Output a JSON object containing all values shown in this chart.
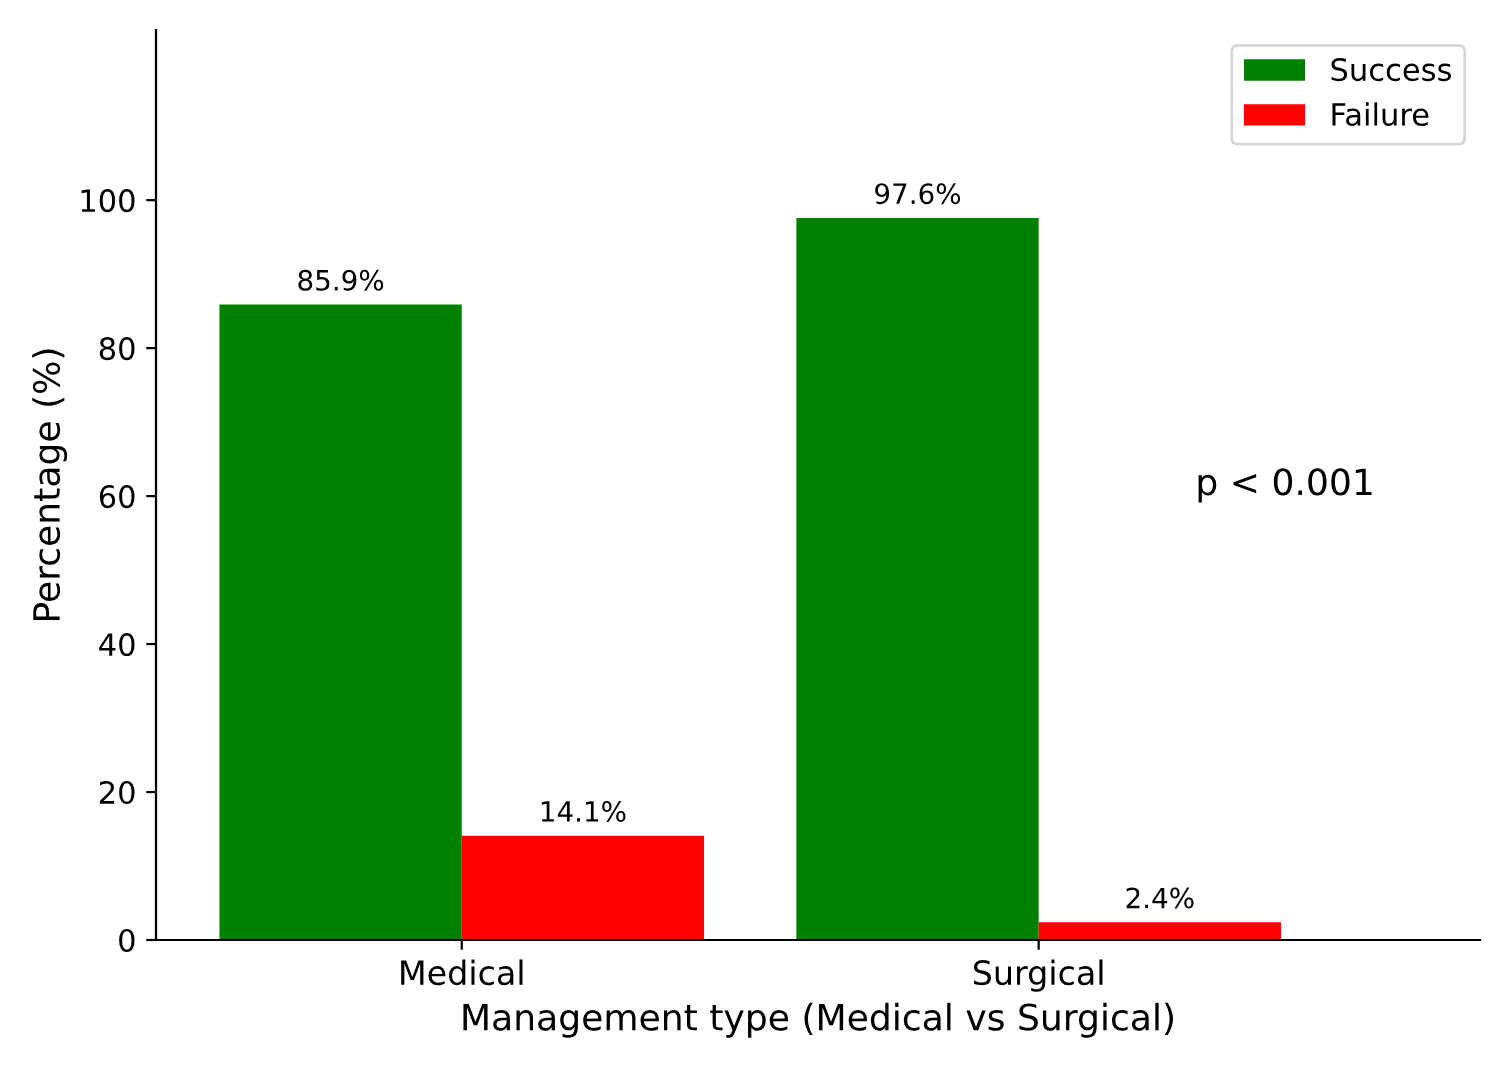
{
  "chart_data": {
    "type": "bar",
    "xlabel": "Management type (Medical vs Surgical)",
    "ylabel": "Percentage (%)",
    "categories": [
      "Medical",
      "Surgical"
    ],
    "series": [
      {
        "name": "Success",
        "color": "#008000",
        "values": [
          85.9,
          97.6
        ],
        "value_labels": [
          "85.9%",
          "97.6%"
        ]
      },
      {
        "name": "Failure",
        "color": "#ff0000",
        "values": [
          14.1,
          2.4
        ],
        "value_labels": [
          "14.1%",
          "2.4%"
        ]
      }
    ],
    "ylim": [
      0,
      123
    ],
    "yticks": [
      0,
      20,
      40,
      60,
      80,
      100
    ],
    "grid": false,
    "legend": "top right",
    "annotations": [
      "p < 0.001"
    ]
  }
}
